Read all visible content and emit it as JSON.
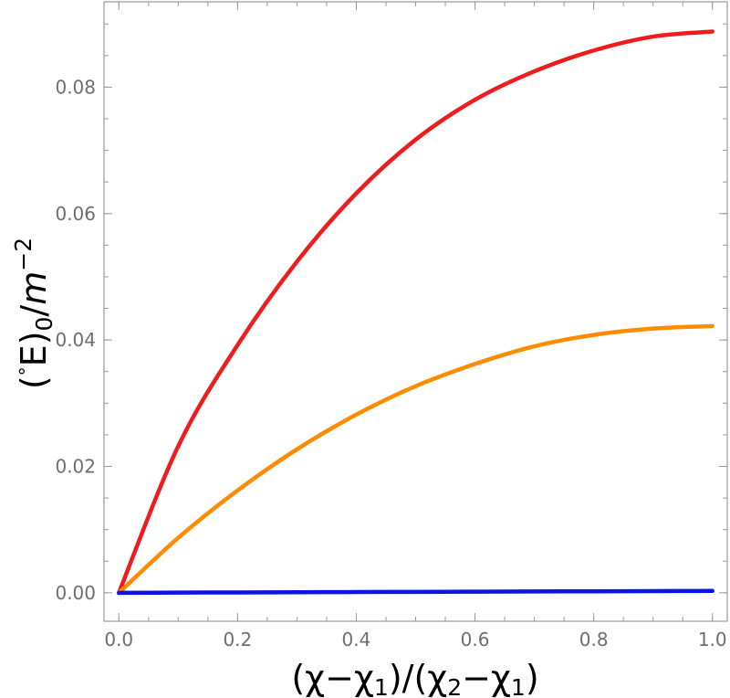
{
  "chart_data": {
    "type": "line",
    "xlabel": "(χ−χ",
    "xlabel_sub1": "1",
    "xlabel_mid": ")/(χ",
    "xlabel_sub2": "2",
    "xlabel_mid2": "−χ",
    "xlabel_sub3": "1",
    "xlabel_end": ")",
    "ylabel_open": "(",
    "ylabel_deg": "°",
    "ylabel_E": "E)",
    "ylabel_sub": "0",
    "ylabel_slash": "/",
    "ylabel_m": "m",
    "ylabel_exp": "−2",
    "xlim": [
      -0.025,
      1.025
    ],
    "ylim": [
      -0.0045,
      0.0935
    ],
    "xticks": [
      0.0,
      0.2,
      0.4,
      0.6,
      0.8,
      1.0
    ],
    "xtick_labels": [
      "0.0",
      "0.2",
      "0.4",
      "0.6",
      "0.8",
      "1.0"
    ],
    "yticks": [
      0.0,
      0.02,
      0.04,
      0.06,
      0.08
    ],
    "ytick_labels": [
      "0.00",
      "0.02",
      "0.04",
      "0.06",
      "0.08"
    ],
    "grid": false,
    "series": [
      {
        "color": "#ee1c1c",
        "x": [
          0.0,
          0.1,
          0.2,
          0.3,
          0.4,
          0.5,
          0.6,
          0.7,
          0.8,
          0.9,
          1.0
        ],
        "y": [
          0.0,
          0.0232,
          0.0392,
          0.0524,
          0.0632,
          0.0717,
          0.078,
          0.0825,
          0.0858,
          0.088,
          0.0888
        ]
      },
      {
        "color": "#ff8c00",
        "x": [
          0.0,
          0.1,
          0.2,
          0.3,
          0.4,
          0.5,
          0.6,
          0.7,
          0.8,
          0.9,
          1.0
        ],
        "y": [
          0.0,
          0.0087,
          0.0162,
          0.0227,
          0.0282,
          0.0327,
          0.0362,
          0.039,
          0.0408,
          0.0418,
          0.0422
        ]
      },
      {
        "color": "#0a14e6",
        "x": [
          0.0,
          0.1,
          0.2,
          0.3,
          0.4,
          0.5,
          0.6,
          0.7,
          0.8,
          0.9,
          1.0
        ],
        "y": [
          0.0,
          3e-05,
          6e-05,
          9e-05,
          0.00012,
          0.00015,
          0.00018,
          0.00021,
          0.00024,
          0.00027,
          0.0003
        ]
      }
    ]
  }
}
